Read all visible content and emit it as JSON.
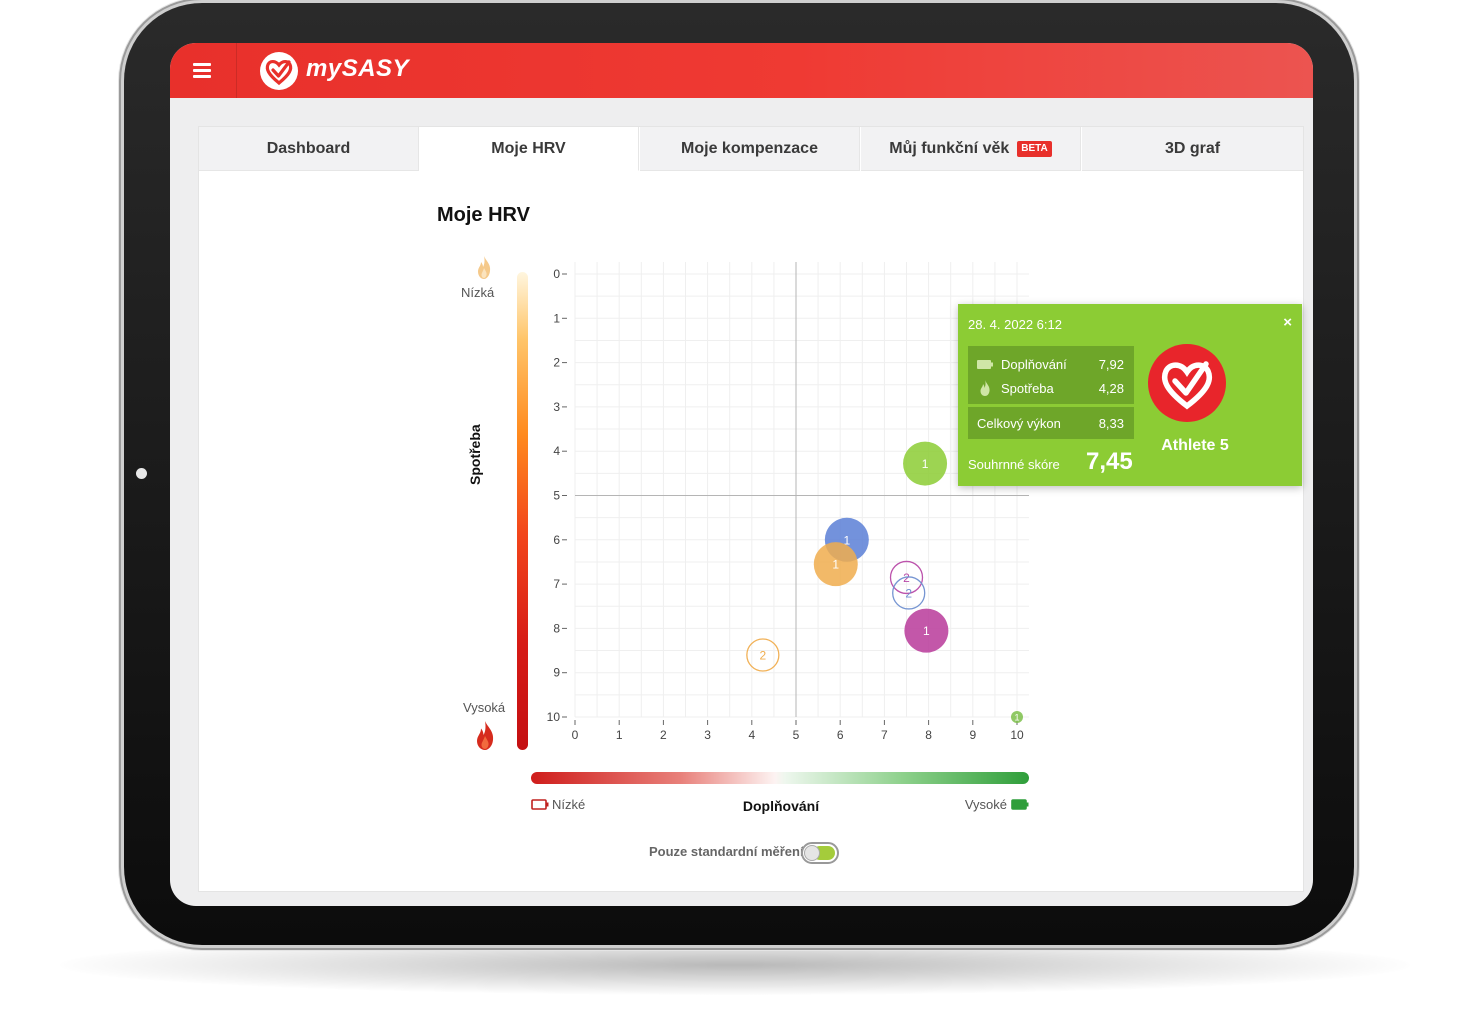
{
  "app": {
    "name": "mySASY",
    "accent_color": "#e8302b"
  },
  "tabs": [
    {
      "label": "Dashboard",
      "active": false
    },
    {
      "label": "Moje HRV",
      "active": true
    },
    {
      "label": "Moje kompenzace",
      "active": false
    },
    {
      "label": "Můj funkční věk",
      "badge": "BETA",
      "active": false
    },
    {
      "label": "3D graf",
      "active": false
    }
  ],
  "main": {
    "title": "Moje HRV"
  },
  "y_axis": {
    "name": "Spotřeba",
    "top_label": "Nízká",
    "bottom_label": "Vysoká"
  },
  "x_axis": {
    "name": "Doplňování",
    "left_label": "Nízké",
    "right_label": "Vysoké"
  },
  "toggle": {
    "label": "Pouze standardní měření",
    "on": true
  },
  "chart_data": {
    "type": "scatter",
    "xlim": [
      0,
      10
    ],
    "ylim": [
      0,
      10
    ],
    "y_reversed": true,
    "grid": true,
    "x_ticks": [
      "0",
      "1",
      "2",
      "3",
      "4",
      "5",
      "6",
      "7",
      "8",
      "9",
      "10"
    ],
    "y_ticks": [
      "0",
      "1",
      "2",
      "3",
      "4",
      "5",
      "6",
      "7",
      "8",
      "9",
      "10"
    ],
    "reference_lines": {
      "x": 5,
      "y": 5
    },
    "points": [
      {
        "x": 7.92,
        "y": 4.28,
        "label": "1",
        "color": "#8ccc34",
        "style": "filled"
      },
      {
        "x": 6.15,
        "y": 6.0,
        "label": "1",
        "color": "#5b7fd6",
        "style": "filled"
      },
      {
        "x": 5.9,
        "y": 6.55,
        "label": "1",
        "color": "#f0ad4e",
        "style": "filled"
      },
      {
        "x": 7.5,
        "y": 6.85,
        "label": "2",
        "color": "#b84aa8",
        "style": "outline"
      },
      {
        "x": 7.55,
        "y": 7.2,
        "label": "2",
        "color": "#6f8fd0",
        "style": "outline"
      },
      {
        "x": 7.95,
        "y": 8.05,
        "label": "1",
        "color": "#b83a9a",
        "style": "filled"
      },
      {
        "x": 4.25,
        "y": 8.6,
        "label": "2",
        "color": "#f0ad4e",
        "style": "outline"
      },
      {
        "x": 10.0,
        "y": 10.0,
        "label": "1",
        "color": "#7cc04a",
        "style": "small"
      }
    ]
  },
  "tooltip": {
    "date": "28. 4. 2022 6:12",
    "close": "×",
    "rows": [
      {
        "name": "Doplňování",
        "value": "7,92",
        "icon": "battery-icon"
      },
      {
        "name": "Spotřeba",
        "value": "4,28",
        "icon": "flame-icon"
      }
    ],
    "total": {
      "name": "Celkový výkon",
      "value": "8,33"
    },
    "score": {
      "name": "Souhrnné skóre",
      "value": "7,45"
    },
    "athlete": "Athlete 5",
    "color": "#8ccc34"
  }
}
